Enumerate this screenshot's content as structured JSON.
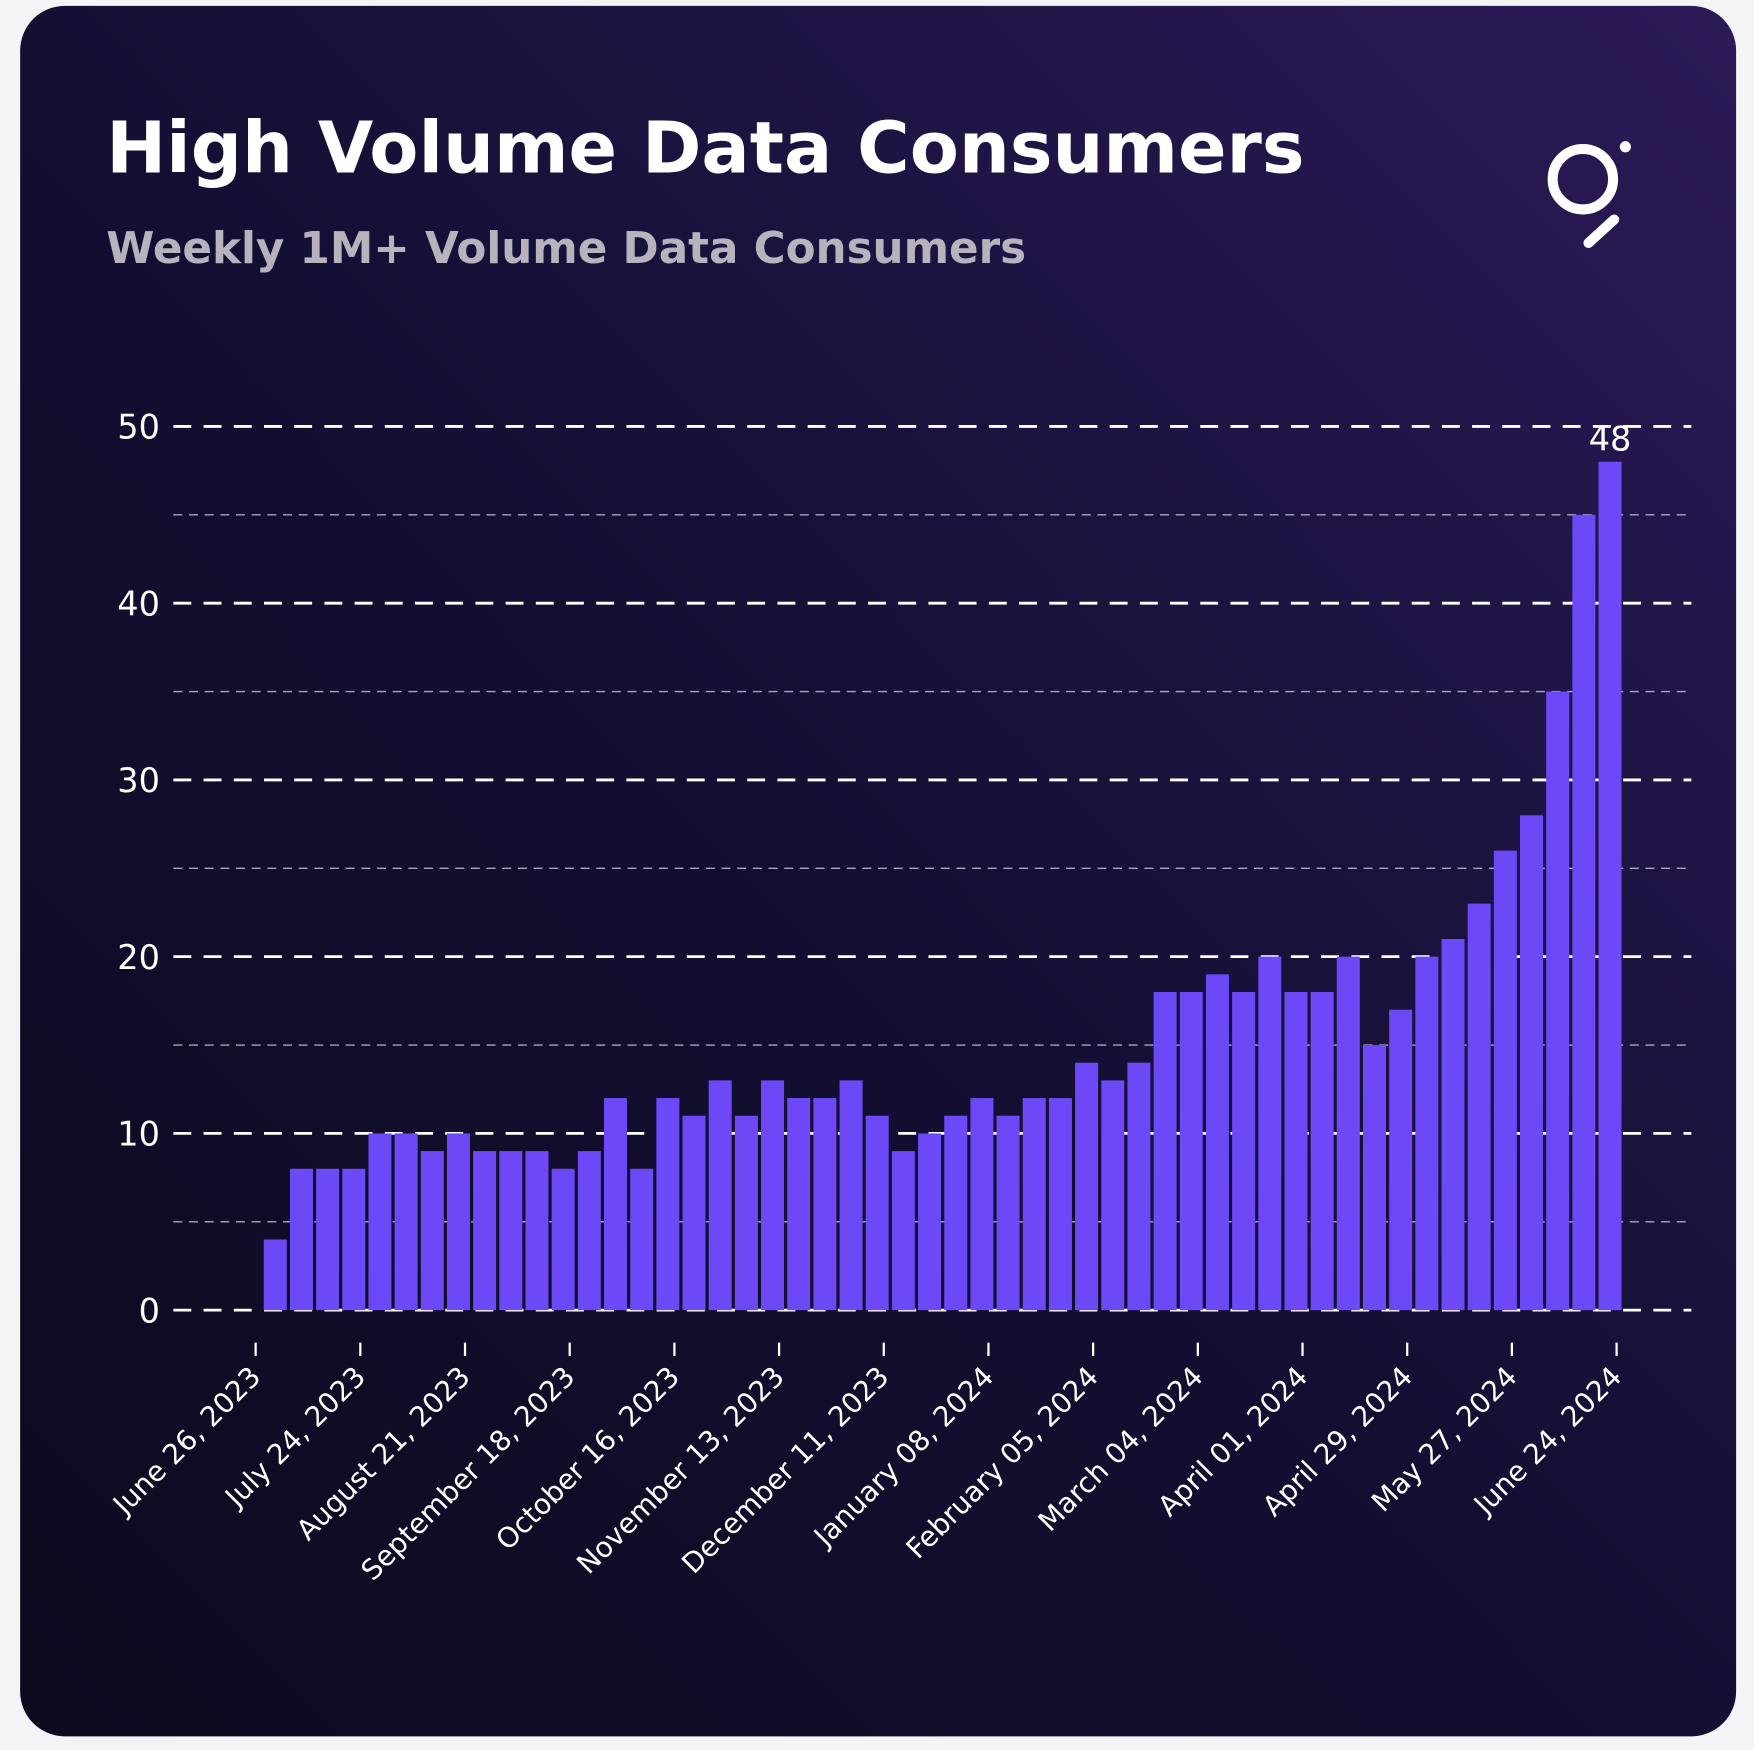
{
  "chart_data": {
    "type": "bar",
    "title": "High Volume Data Consumers",
    "subtitle": "Weekly 1M+ Volume Data Consumers",
    "color": "#6d48f7",
    "x": [
      "2023-07-03",
      "2023-07-10",
      "2023-07-17",
      "2023-07-24",
      "2023-07-31",
      "2023-08-07",
      "2023-08-14",
      "2023-08-21",
      "2023-08-28",
      "2023-09-04",
      "2023-09-11",
      "2023-09-18",
      "2023-09-25",
      "2023-10-02",
      "2023-10-09",
      "2023-10-16",
      "2023-10-23",
      "2023-10-30",
      "2023-11-06",
      "2023-11-13",
      "2023-11-20",
      "2023-11-27",
      "2023-12-04",
      "2023-12-11",
      "2023-12-18",
      "2023-12-25",
      "2024-01-01",
      "2024-01-08",
      "2024-01-15",
      "2024-01-22",
      "2024-01-29",
      "2024-02-05",
      "2024-02-12",
      "2024-02-19",
      "2024-02-26",
      "2024-03-04",
      "2024-03-11",
      "2024-03-18",
      "2024-03-25",
      "2024-04-01",
      "2024-04-08",
      "2024-04-15",
      "2024-04-22",
      "2024-04-29",
      "2024-05-06",
      "2024-05-13",
      "2024-05-20",
      "2024-05-27",
      "2024-06-03",
      "2024-06-10",
      "2024-06-17",
      "2024-06-24"
    ],
    "values": [
      4,
      8,
      8,
      8,
      10,
      10,
      9,
      10,
      9,
      9,
      9,
      8,
      9,
      12,
      8,
      12,
      11,
      13,
      11,
      13,
      12,
      12,
      13,
      11,
      9,
      10,
      11,
      12,
      11,
      12,
      12,
      14,
      13,
      14,
      18,
      18,
      19,
      18,
      20,
      18,
      18,
      20,
      15,
      17,
      20,
      21,
      23,
      26,
      28,
      35,
      45,
      48
    ],
    "value_labels": [
      null,
      null,
      null,
      null,
      null,
      null,
      null,
      null,
      null,
      null,
      null,
      null,
      null,
      null,
      null,
      null,
      null,
      null,
      null,
      null,
      null,
      null,
      null,
      null,
      null,
      null,
      null,
      null,
      null,
      null,
      null,
      null,
      null,
      null,
      null,
      null,
      null,
      null,
      null,
      null,
      null,
      null,
      null,
      null,
      null,
      null,
      null,
      null,
      null,
      null,
      null,
      "48"
    ],
    "xlim": [
      "2023-06-04",
      "2024-07-14"
    ],
    "xticks": [
      {
        "value": "2023-06-26",
        "label": "June 26, 2023"
      },
      {
        "value": "2023-07-24",
        "label": "July 24, 2023"
      },
      {
        "value": "2023-08-21",
        "label": "August 21, 2023"
      },
      {
        "value": "2023-09-18",
        "label": "September 18, 2023"
      },
      {
        "value": "2023-10-16",
        "label": "October 16, 2023"
      },
      {
        "value": "2023-11-13",
        "label": "November 13, 2023"
      },
      {
        "value": "2023-12-11",
        "label": "December 11, 2023"
      },
      {
        "value": "2024-01-08",
        "label": "January 08, 2024"
      },
      {
        "value": "2024-02-05",
        "label": "February 05, 2024"
      },
      {
        "value": "2024-03-04",
        "label": "March 04, 2024"
      },
      {
        "value": "2024-04-01",
        "label": "April 01, 2024"
      },
      {
        "value": "2024-04-29",
        "label": "April 29, 2024"
      },
      {
        "value": "2024-05-27",
        "label": "May 27, 2024"
      },
      {
        "value": "2024-06-24",
        "label": "June 24, 2024"
      }
    ],
    "ylim": [
      0,
      50
    ],
    "yticks": [
      0,
      10,
      20,
      30,
      40,
      50
    ],
    "minor_yticks": [
      5,
      15,
      25,
      35,
      45
    ],
    "grid": true
  }
}
